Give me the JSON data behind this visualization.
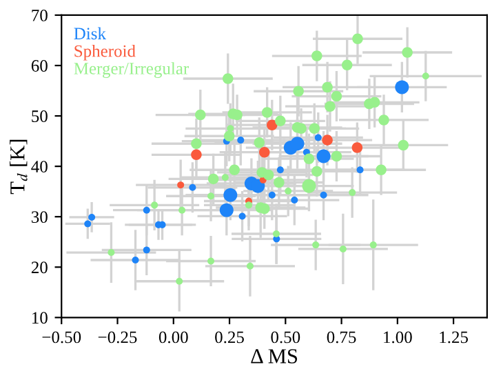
{
  "chart_data": {
    "type": "bubble",
    "xlabel": "Δ MS",
    "ylabel": "T$_{d}$ [K]",
    "xlim": [
      -0.5,
      1.4
    ],
    "ylim": [
      10,
      70
    ],
    "xticks": [
      {
        "value": -0.5,
        "label": "−0.50"
      },
      {
        "value": -0.25,
        "label": "−0.25"
      },
      {
        "value": 0,
        "label": "0.00"
      },
      {
        "value": 0.25,
        "label": "0.25"
      },
      {
        "value": 0.5,
        "label": "0.50"
      },
      {
        "value": 0.75,
        "label": "0.75"
      },
      {
        "value": 1.0,
        "label": "1.00"
      },
      {
        "value": 1.25,
        "label": "1.25"
      }
    ],
    "yticks": [
      10,
      20,
      30,
      40,
      50,
      60,
      70
    ],
    "grid": false,
    "legend": "top left",
    "series": [
      {
        "name": "Disk",
        "color": "#1e84f8",
        "x": [
          -0.365,
          -0.383,
          -0.12,
          -0.067,
          -0.05,
          -0.12,
          -0.17,
          0.085,
          0.254,
          0.237,
          0.307,
          0.44,
          0.46,
          0.54,
          0.67,
          0.348,
          0.377,
          0.477,
          0.523,
          0.553,
          0.594,
          0.67,
          0.646,
          0.237,
          0.3,
          0.833,
          1.02
        ],
        "values": [
          29.9,
          28.6,
          31.3,
          28.4,
          28.4,
          23.4,
          21.4,
          35.8,
          34.3,
          31.3,
          30.1,
          34.3,
          25.6,
          33.3,
          34.3,
          36.6,
          36.1,
          39.3,
          43.7,
          44.5,
          42.8,
          42.0,
          45.7,
          45.0,
          45.2,
          39.3,
          55.7
        ],
        "sizes": [
          0.25,
          0.25,
          0.25,
          0.25,
          0.25,
          0.25,
          0.25,
          0.25,
          1,
          1,
          0.25,
          0.25,
          0.25,
          0.25,
          0.25,
          1,
          1,
          0.25,
          1,
          1,
          0.25,
          1,
          0.25,
          0.25,
          0.25,
          0.25,
          1
        ],
        "xerrors": [
          0.1,
          0.1,
          0.15,
          0.15,
          0.15,
          0.2,
          0.2,
          0.2,
          0.2,
          0.2,
          0.2,
          0.2,
          0.2,
          0.2,
          0.2,
          0.2,
          0.2,
          0.2,
          0.2,
          0.2,
          0.2,
          0.2,
          0.2,
          0.2,
          0.2,
          0.2,
          0.2
        ],
        "errors": [
          3,
          3,
          5,
          3,
          3,
          5,
          6,
          5,
          5,
          5,
          5,
          5,
          5,
          5,
          5,
          5,
          5,
          5,
          5,
          5,
          5,
          5,
          5,
          5,
          5,
          5,
          5
        ]
      },
      {
        "name": "Spheroid",
        "color": "#fa5a3c",
        "x": [
          0.032,
          0.336,
          0.4,
          0.102,
          0.406,
          0.44,
          0.687,
          0.82
        ],
        "values": [
          36.3,
          33.1,
          37.3,
          42.3,
          42.8,
          48.2,
          45.2,
          43.7
        ],
        "sizes": [
          0.25,
          0.25,
          0.25,
          0.6,
          0.6,
          0.6,
          0.6,
          0.6
        ],
        "xerrors": [
          0.2,
          0.2,
          0.2,
          0.2,
          0.2,
          0.2,
          0.2,
          0.2
        ],
        "errors": [
          5,
          5,
          5,
          5,
          5,
          5,
          5,
          5
        ]
      },
      {
        "name": "Merger/Irregular",
        "color": "#98f08c",
        "x": [
          0.243,
          0.12,
          0.266,
          0.284,
          0.418,
          0.477,
          0.254,
          0.249,
          0.383,
          0.102,
          0.553,
          0.57,
          0.629,
          0.728,
          0.605,
          0.558,
          0.687,
          0.728,
          0.699,
          0.874,
          0.822,
          0.64,
          1.044,
          0.775,
          1.126,
          0.898,
          0.939,
          1.026,
          0.927,
          0.64,
          0.178,
          0.231,
          0.272,
          0.395,
          0.424,
          0.471,
          0.605,
          0.512,
          0.798,
          0.167,
          0.389,
          0.406,
          0.336,
          0.038,
          -0.085,
          0.459,
          0.635,
          0.757,
          0.892,
          -0.278,
          0.026,
          0.167,
          0.342
        ],
        "values": [
          57.4,
          50.2,
          50.4,
          50.2,
          50.7,
          49.0,
          47.5,
          46.0,
          44.7,
          44.5,
          47.7,
          47.5,
          47.5,
          42.0,
          41.5,
          54.9,
          55.7,
          53.9,
          51.9,
          52.4,
          65.3,
          61.9,
          62.6,
          60.1,
          57.9,
          52.7,
          49.2,
          44.2,
          39.3,
          39.0,
          37.5,
          37.8,
          39.3,
          38.8,
          38.3,
          36.8,
          36.1,
          35.1,
          34.8,
          34.1,
          31.8,
          31.6,
          32.3,
          31.3,
          32.3,
          26.6,
          24.4,
          23.6,
          24.4,
          22.9,
          17.2,
          21.2,
          20.2
        ],
        "sizes": [
          0.6,
          0.6,
          0.6,
          0.6,
          0.6,
          0.6,
          0.25,
          0.6,
          0.6,
          0.6,
          0.6,
          0.6,
          0.6,
          0.6,
          0.6,
          0.6,
          0.6,
          0.6,
          0.6,
          0.6,
          0.6,
          0.6,
          0.6,
          0.6,
          0.25,
          0.6,
          0.6,
          0.6,
          0.6,
          0.6,
          0.6,
          0.25,
          0.6,
          0.6,
          0.6,
          0.6,
          1,
          0.25,
          0.25,
          0.25,
          0.6,
          0.6,
          0.25,
          0.25,
          0.25,
          0.25,
          0.25,
          0.25,
          0.25,
          0.25,
          0.25,
          0.25,
          0.25
        ],
        "xerrors": [
          0.2,
          0.2,
          0.2,
          0.2,
          0.2,
          0.2,
          0.2,
          0.2,
          0.2,
          0.2,
          0.2,
          0.2,
          0.2,
          0.2,
          0.2,
          0.2,
          0.2,
          0.2,
          0.2,
          0.2,
          0.2,
          0.2,
          0.2,
          0.2,
          0.25,
          0.2,
          0.2,
          0.2,
          0.2,
          0.2,
          0.2,
          0.2,
          0.2,
          0.2,
          0.2,
          0.2,
          0.2,
          0.2,
          0.2,
          0.2,
          0.2,
          0.2,
          0.2,
          0.2,
          0.2,
          0.2,
          0.2,
          0.2,
          0.2,
          0.2,
          0.2,
          0.2,
          0.2
        ],
        "errors": [
          5,
          5,
          6,
          4,
          5,
          5,
          5,
          5,
          5,
          5,
          6,
          4,
          5,
          5,
          5,
          5,
          5,
          5,
          5,
          5,
          5,
          5,
          5,
          5,
          5,
          5,
          5,
          5,
          5,
          5,
          5,
          5,
          5,
          5,
          5,
          5,
          5,
          5,
          5,
          5,
          6,
          4,
          5,
          5,
          5,
          6,
          5,
          7,
          9,
          6,
          6,
          5,
          6
        ]
      }
    ]
  }
}
